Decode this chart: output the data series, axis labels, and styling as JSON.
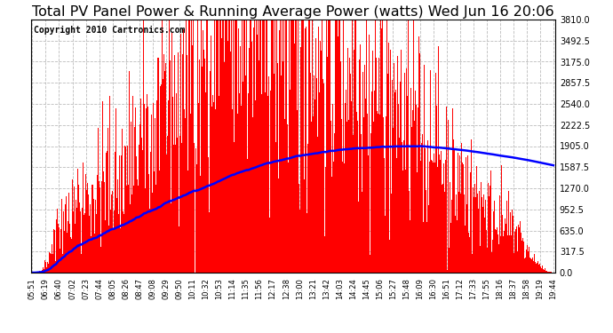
{
  "title": "Total PV Panel Power & Running Average Power (watts) Wed Jun 16 20:06",
  "copyright": "Copyright 2010 Cartronics.com",
  "ylim": [
    0,
    3810.0
  ],
  "yticks": [
    0.0,
    317.5,
    635.0,
    952.5,
    1270.0,
    1587.5,
    1905.0,
    2222.5,
    2540.0,
    2857.5,
    3175.0,
    3492.5,
    3810.0
  ],
  "bar_color": "red",
  "line_color": "blue",
  "background_color": "white",
  "grid_color": "#bbbbbb",
  "title_fontsize": 11.5,
  "copyright_fontsize": 7,
  "x_labels": [
    "05:51",
    "06:19",
    "06:40",
    "07:02",
    "07:23",
    "07:44",
    "08:05",
    "08:26",
    "08:47",
    "09:08",
    "09:29",
    "09:50",
    "10:11",
    "10:32",
    "10:53",
    "11:14",
    "11:35",
    "11:56",
    "12:17",
    "12:38",
    "13:00",
    "13:21",
    "13:42",
    "14:03",
    "14:24",
    "14:45",
    "15:06",
    "15:27",
    "15:48",
    "16:09",
    "16:30",
    "16:51",
    "17:12",
    "17:33",
    "17:55",
    "18:16",
    "18:37",
    "18:58",
    "19:19",
    "19:44"
  ],
  "figsize": [
    6.9,
    3.75
  ],
  "dpi": 100
}
